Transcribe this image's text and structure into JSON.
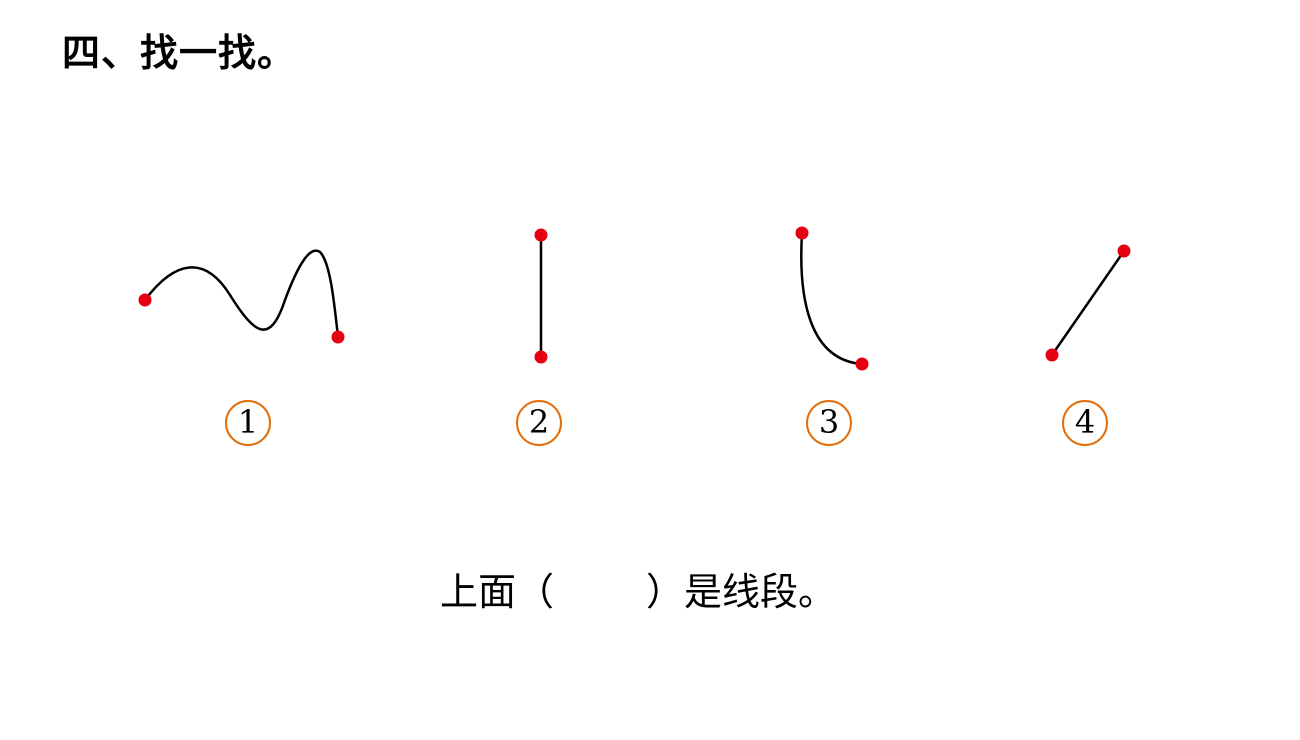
{
  "title": "四、找一找。",
  "figures": [
    {
      "label": "1",
      "description": "curve"
    },
    {
      "label": "2",
      "description": "vertical-segment"
    },
    {
      "label": "3",
      "description": "curve"
    },
    {
      "label": "4",
      "description": "slanted-segment"
    }
  ],
  "question": {
    "prefix": "上面（",
    "blank": "",
    "suffix": "）是线段。"
  },
  "colors": {
    "endpoint": "#e60012",
    "line": "#000000",
    "label_ring": "#e36c09"
  }
}
